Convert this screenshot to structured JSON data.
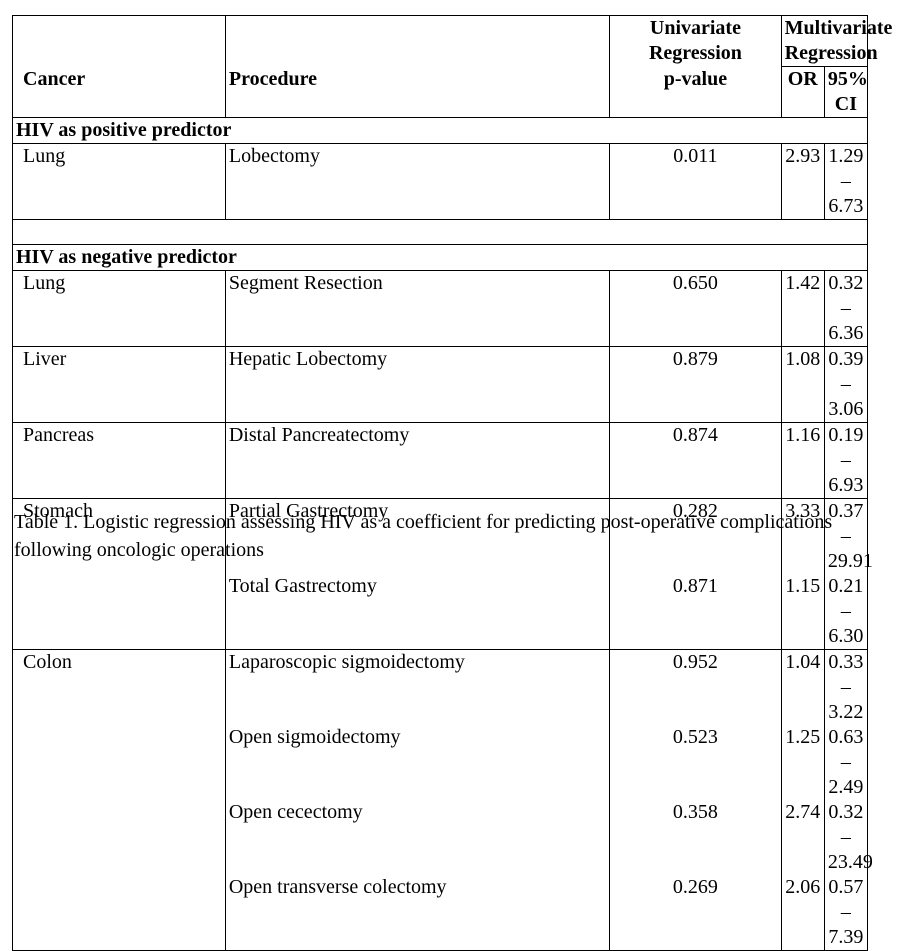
{
  "table": {
    "header": {
      "univariate_group": "Univariate Regression",
      "multivariate_group": "Multivariate Regression",
      "cancer": "Cancer",
      "procedure": "Procedure",
      "pvalue": "p-value",
      "or": "OR",
      "ci": "95% CI"
    },
    "positive_section": "HIV as positive predictor",
    "positive_rows": [
      {
        "cancer": "Lung",
        "procedure": "Lobectomy",
        "p": "0.011",
        "or": "2.93",
        "ci": "1.29 – 6.73"
      }
    ],
    "negative_section": "HIV as negative predictor",
    "negative_rows": [
      {
        "cancer": "Lung",
        "procedure": "Segment Resection",
        "p": "0.650",
        "or": "1.42",
        "ci": "0.32 – 6.36"
      },
      {
        "cancer": "Liver",
        "procedure": "Hepatic Lobectomy",
        "p": "0.879",
        "or": "1.08",
        "ci": "0.39 – 3.06"
      },
      {
        "cancer": "Pancreas",
        "procedure": "Distal Pancreatectomy",
        "p": "0.874",
        "or": "1.16",
        "ci": "0.19 – 6.93"
      },
      {
        "cancer": "Stomach",
        "procedure": "Partial Gastrectomy",
        "p": "0.282",
        "or": "3.33",
        "ci": "0.37 – 29.91"
      },
      {
        "cancer": "",
        "procedure": "Total Gastrectomy",
        "p": "0.871",
        "or": "1.15",
        "ci": "0.21 – 6.30"
      },
      {
        "cancer": "Colon",
        "procedure": "Laparoscopic sigmoidectomy",
        "p": "0.952",
        "or": "1.04",
        "ci": "0.33 – 3.22"
      },
      {
        "cancer": "",
        "procedure": "Open sigmoidectomy",
        "p": "0.523",
        "or": "1.25",
        "ci": "0.63 – 2.49"
      },
      {
        "cancer": "",
        "procedure": "Open cecectomy",
        "p": "0.358",
        "or": "2.74",
        "ci": "0.32 – 23.49"
      },
      {
        "cancer": "",
        "procedure": "Open transverse colectomy",
        "p": "0.269",
        "or": "2.06",
        "ci": "0.57 – 7.39"
      }
    ]
  },
  "caption": "Table 1. Logistic regression assessing HIV as a coefficient for predicting post-operative complications following oncologic operations"
}
